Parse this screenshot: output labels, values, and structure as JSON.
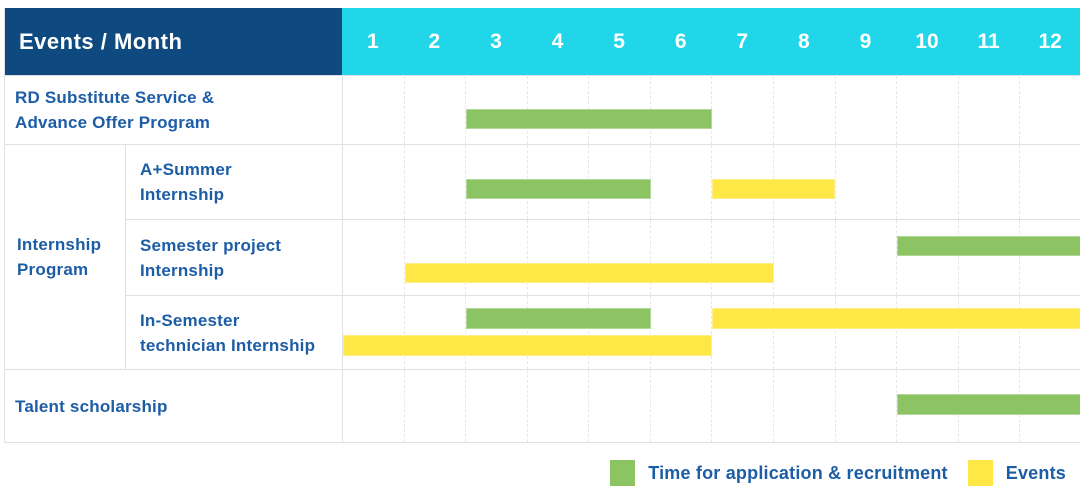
{
  "ui": {
    "header": {
      "title": "Events / Month"
    },
    "months": [
      "1",
      "2",
      "3",
      "4",
      "5",
      "6",
      "7",
      "8",
      "9",
      "10",
      "11",
      "12"
    ],
    "rows": [
      {
        "line1": "RD Substitute Service &",
        "line2": "Advance Offer Program"
      },
      {
        "line1": "A+Summer",
        "line2": "Internship"
      },
      {
        "line1": "Semester project",
        "line2": "Internship"
      },
      {
        "line1": "In-Semester",
        "line2": "technician Internship"
      },
      {
        "line1": "Talent scholarship",
        "line2": ""
      }
    ],
    "group_label": {
      "line1": "Internship",
      "line2": "Program"
    },
    "colors": {
      "navy": "#0e4a7f",
      "cyan": "#22d6ea",
      "green": "#8cc363",
      "yellow": "#ffe845",
      "labelblue": "#1d5da6"
    }
  },
  "chart_data": {
    "type": "gantt",
    "unit": "month",
    "x_domain": [
      1,
      12
    ],
    "x_ticks": [
      "1",
      "2",
      "3",
      "4",
      "5",
      "6",
      "7",
      "8",
      "9",
      "10",
      "11",
      "12"
    ],
    "legend": [
      {
        "id": "recruitment",
        "label": "Time for application & recruitment",
        "color_key": "green"
      },
      {
        "id": "events",
        "label": "Events",
        "color_key": "yellow"
      }
    ],
    "rows": [
      {
        "group": null,
        "label": "RD Substitute Service & Advance Offer Program",
        "bars": [
          {
            "series": "recruitment",
            "start": 3,
            "end": 6,
            "lane": 0
          }
        ]
      },
      {
        "group": "Internship Program",
        "label": "A+Summer Internship",
        "bars": [
          {
            "series": "recruitment",
            "start": 3,
            "end": 5,
            "lane": 0
          },
          {
            "series": "events",
            "start": 7,
            "end": 8,
            "lane": 0
          }
        ]
      },
      {
        "group": "Internship Program",
        "label": "Semester project Internship",
        "bars": [
          {
            "series": "recruitment",
            "start": 10,
            "end": 12,
            "lane": 0
          },
          {
            "series": "events",
            "start": 2,
            "end": 7,
            "lane": 1
          }
        ]
      },
      {
        "group": "Internship Program",
        "label": "In-Semester technician Internship",
        "bars": [
          {
            "series": "recruitment",
            "start": 3,
            "end": 5,
            "lane": 0
          },
          {
            "series": "events",
            "start": 7,
            "end": 12,
            "lane": 0
          },
          {
            "series": "events",
            "start": 1,
            "end": 6,
            "lane": 1
          }
        ]
      },
      {
        "group": null,
        "label": "Talent scholarship",
        "bars": [
          {
            "series": "recruitment",
            "start": 10,
            "end": 12,
            "lane": 0
          }
        ]
      }
    ]
  }
}
